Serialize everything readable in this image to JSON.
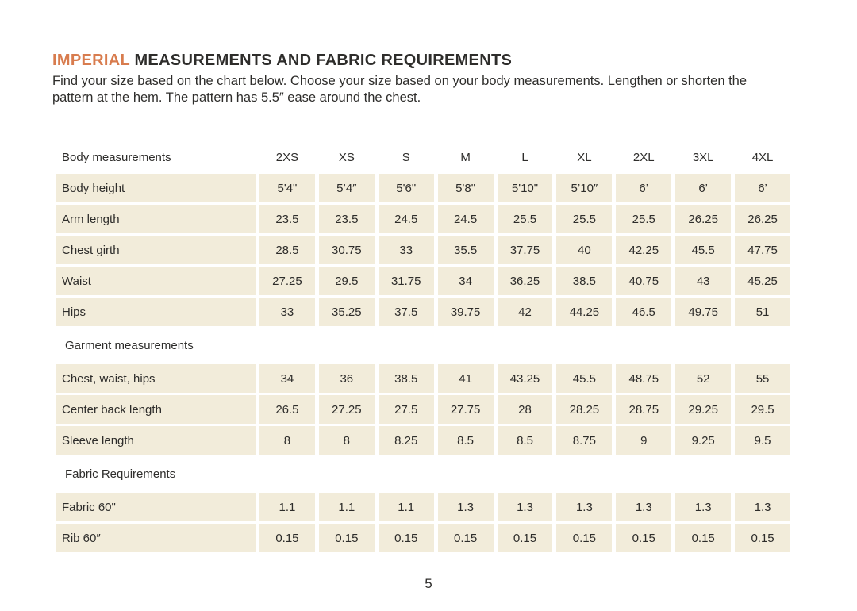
{
  "page": {
    "title_accent": "IMPERIAL",
    "title_rest": " MEASUREMENTS AND FABRIC REQUIREMENTS",
    "intro_lines": [
      "Find your size based on the chart below. Choose your size based on your body measurements. Lengthen or shorten the",
      "pattern at the hem. The pattern has 5.5″ ease around the chest."
    ],
    "page_number": "5"
  },
  "colors": {
    "accent": "#d87c4e",
    "cell_bg": "#f2ecda",
    "text": "#2e2d2b"
  },
  "table": {
    "header": {
      "label": "Body measurements",
      "columns": [
        "2XS",
        "XS",
        "S",
        "M",
        "L",
        "XL",
        "2XL",
        "3XL",
        "4XL"
      ]
    },
    "sections": [
      {
        "label": "",
        "rows": [
          {
            "label": "Body height",
            "values": [
              "5'4\"",
              "5’4″",
              "5'6\"",
              "5'8\"",
              "5'10\"",
              "5’10″",
              "6’",
              "6’",
              "6’"
            ]
          },
          {
            "label": "Arm length",
            "values": [
              "23.5",
              "23.5",
              "24.5",
              "24.5",
              "25.5",
              "25.5",
              "25.5",
              "26.25",
              "26.25"
            ]
          },
          {
            "label": "Chest girth",
            "values": [
              "28.5",
              "30.75",
              "33",
              "35.5",
              "37.75",
              "40",
              "42.25",
              "45.5",
              "47.75"
            ]
          },
          {
            "label": "Waist",
            "values": [
              "27.25",
              "29.5",
              "31.75",
              "34",
              "36.25",
              "38.5",
              "40.75",
              "43",
              "45.25"
            ]
          },
          {
            "label": "Hips",
            "values": [
              "33",
              "35.25",
              "37.5",
              "39.75",
              "42",
              "44.25",
              "46.5",
              "49.75",
              "51"
            ]
          }
        ]
      },
      {
        "label": "Garment measurements",
        "rows": [
          {
            "label": "Chest, waist, hips",
            "values": [
              "34",
              "36",
              "38.5",
              "41",
              "43.25",
              "45.5",
              "48.75",
              "52",
              "55"
            ]
          },
          {
            "label": "Center back length",
            "values": [
              "26.5",
              "27.25",
              "27.5",
              "27.75",
              "28",
              "28.25",
              "28.75",
              "29.25",
              "29.5"
            ]
          },
          {
            "label": "Sleeve length",
            "values": [
              "8",
              "8",
              "8.25",
              "8.5",
              "8.5",
              "8.75",
              "9",
              "9.25",
              "9.5"
            ]
          }
        ]
      },
      {
        "label": "Fabric Requirements",
        "rows": [
          {
            "label": "Fabric 60\"",
            "values": [
              "1.1",
              "1.1",
              "1.1",
              "1.3",
              "1.3",
              "1.3",
              "1.3",
              "1.3",
              "1.3"
            ]
          },
          {
            "label": "Rib 60″",
            "values": [
              "0.15",
              "0.15",
              "0.15",
              "0.15",
              "0.15",
              "0.15",
              "0.15",
              "0.15",
              "0.15"
            ]
          }
        ]
      }
    ]
  }
}
